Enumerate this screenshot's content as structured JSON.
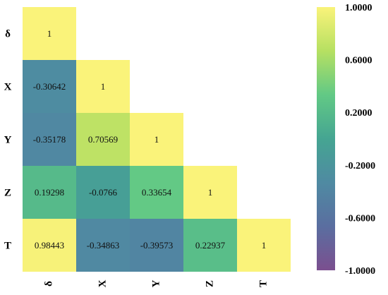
{
  "chart_data": {
    "type": "heatmap",
    "subtype": "lower-triangular correlation matrix",
    "row_labels": [
      "δ",
      "X",
      "Y",
      "Z",
      "T"
    ],
    "col_labels": [
      "δ",
      "X",
      "Y",
      "Z",
      "T"
    ],
    "values": [
      [
        1,
        null,
        null,
        null,
        null
      ],
      [
        -0.30642,
        1,
        null,
        null,
        null
      ],
      [
        -0.35178,
        0.70569,
        1,
        null,
        null
      ],
      [
        0.19298,
        -0.0766,
        0.33654,
        1,
        null
      ],
      [
        0.98443,
        -0.34863,
        -0.39573,
        0.22937,
        1
      ]
    ],
    "cell_text": [
      [
        "1",
        "",
        "",
        "",
        ""
      ],
      [
        "-0.30642",
        "1",
        "",
        "",
        ""
      ],
      [
        "-0.35178",
        "0.70569",
        "1",
        "",
        ""
      ],
      [
        "0.19298",
        "-0.0766",
        "0.33654",
        "1",
        ""
      ],
      [
        "0.98443",
        "-0.34863",
        "-0.39573",
        "0.22937",
        "1"
      ]
    ],
    "colorbar": {
      "range": [
        -1,
        1
      ],
      "tick_values": [
        1,
        0.6,
        0.2,
        -0.2,
        -0.6,
        -1
      ],
      "tick_labels": [
        "1.0000",
        "0.6000",
        "0.2000",
        "-0.2000",
        "-0.6000",
        "-1.0000"
      ],
      "position": "right"
    },
    "colormap": [
      "#7b4f8f",
      "#5a6ea0",
      "#4f8aa2",
      "#45a592",
      "#62c985",
      "#b6e062",
      "#faf37a"
    ],
    "title": "",
    "xlabel": "",
    "ylabel": ""
  }
}
